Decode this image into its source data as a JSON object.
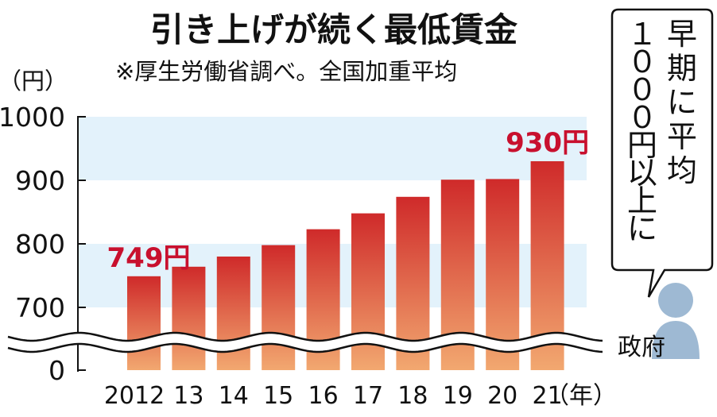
{
  "chart_data": {
    "type": "bar",
    "title": "引き上げが続く最低賃金",
    "subtitle": "※厚生労働省調べ。全国加重平均",
    "ylabel": "（円）",
    "xlabel": "（年）",
    "ylim": [
      0,
      1000
    ],
    "axis_break": [
      0,
      650
    ],
    "yticks": [
      "1000",
      "900",
      "800",
      "700",
      "0"
    ],
    "categories": [
      "2012",
      "13",
      "14",
      "15",
      "16",
      "17",
      "18",
      "19",
      "20",
      "21"
    ],
    "values": [
      749,
      764,
      780,
      798,
      823,
      848,
      874,
      901,
      902,
      930
    ],
    "grid": false,
    "annotations": [
      {
        "index": 0,
        "text": "749円"
      },
      {
        "index": 9,
        "text": "930円"
      }
    ]
  },
  "callout": {
    "lines": [
      "早",
      "期",
      "に",
      "平",
      "均",
      "１",
      "０",
      "０",
      "０",
      "円",
      "以",
      "上",
      "に"
    ],
    "speaker": "政府"
  },
  "colors": {
    "bar_top": "#cf2a2a",
    "bar_bottom": "#f2a870",
    "band": "#e3f2fb",
    "annotation": "#c8102e",
    "person": "#9eb9d3"
  }
}
